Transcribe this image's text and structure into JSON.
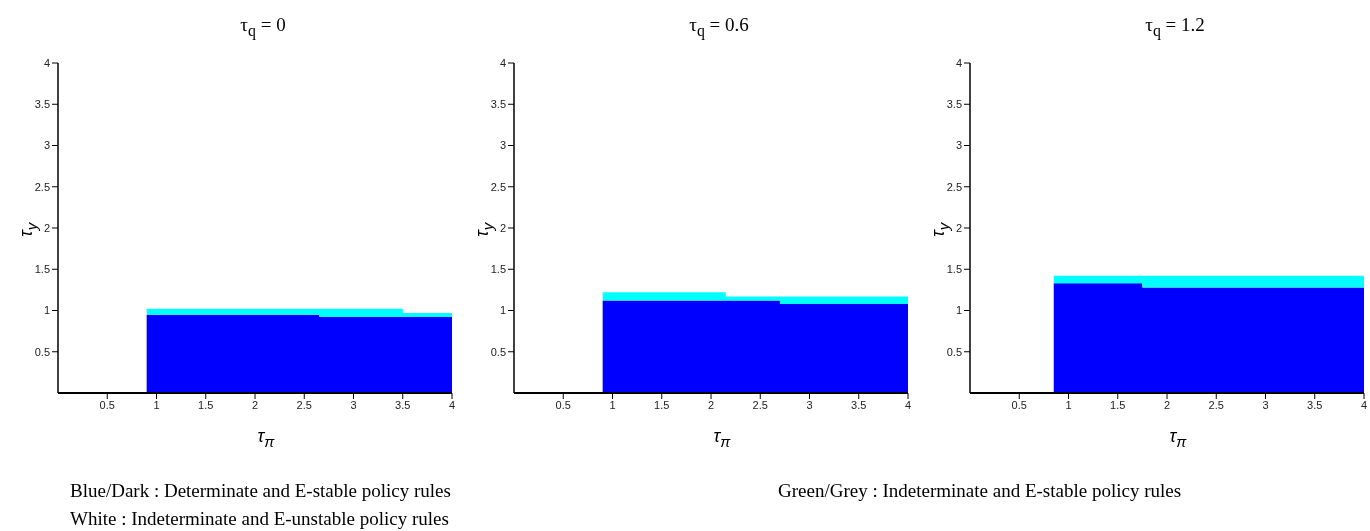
{
  "chart_data": [
    {
      "type": "area",
      "title": "τ$_{q}$ = 0",
      "xlabel": "τ$_{π}$",
      "ylabel": "τ$_{y}$",
      "stacked": true,
      "xlim": [
        0,
        4
      ],
      "ylim": [
        0,
        4
      ],
      "xticks": [
        0.5,
        1,
        1.5,
        2,
        2.5,
        3,
        3.5,
        4
      ],
      "yticks": [
        0.5,
        1,
        1.5,
        2,
        2.5,
        3,
        3.5,
        4
      ],
      "x": [
        0.9,
        2.65,
        2.65,
        3.5,
        3.5,
        4
      ],
      "series": [
        {
          "color": "#0000ff",
          "values": [
            0.95,
            0.95,
            0.92,
            0.92,
            0.92,
            0.92
          ]
        },
        {
          "color": "#00ffff",
          "values": [
            0.07,
            0.07,
            0.1,
            0.1,
            0.05,
            0.05
          ]
        }
      ],
      "annotations": [
        "Blue/Dark : Determinate and E-stable policy rules",
        "Green/Grey : Indeterminate and E-stable policy rules",
        "White : Indeterminate and E-unstable policy rules"
      ]
    },
    {
      "type": "area",
      "title": "τ$_{q}$ = 0.6",
      "xlabel": "τ$_{π}$",
      "ylabel": "τ$_{y}$",
      "stacked": true,
      "xlim": [
        0,
        4
      ],
      "ylim": [
        0,
        4
      ],
      "xticks": [
        0.5,
        1,
        1.5,
        2,
        2.5,
        3,
        3.5,
        4
      ],
      "yticks": [
        0.5,
        1,
        1.5,
        2,
        2.5,
        3,
        3.5,
        4
      ],
      "x": [
        0.9,
        2.15,
        2.15,
        2.7,
        2.7,
        4
      ],
      "series": [
        {
          "color": "#0000ff",
          "values": [
            1.12,
            1.12,
            1.12,
            1.12,
            1.08,
            1.08
          ]
        },
        {
          "color": "#00ffff",
          "values": [
            0.1,
            0.1,
            0.05,
            0.05,
            0.09,
            0.09
          ]
        }
      ]
    },
    {
      "type": "area",
      "title": "τ$_{q}$ = 1.2",
      "xlabel": "τ$_{π}$",
      "ylabel": "τ$_{y}$",
      "stacked": true,
      "xlim": [
        0,
        4
      ],
      "ylim": [
        0,
        4
      ],
      "xticks": [
        0.5,
        1,
        1.5,
        2,
        2.5,
        3,
        3.5,
        4
      ],
      "yticks": [
        0.5,
        1,
        1.5,
        2,
        2.5,
        3,
        3.5,
        4
      ],
      "x": [
        0.85,
        1.75,
        1.75,
        4
      ],
      "series": [
        {
          "color": "#0000ff",
          "values": [
            1.33,
            1.33,
            1.28,
            1.28
          ]
        },
        {
          "color": "#00ffff",
          "values": [
            0.09,
            0.09,
            0.14,
            0.14
          ]
        }
      ]
    }
  ]
}
